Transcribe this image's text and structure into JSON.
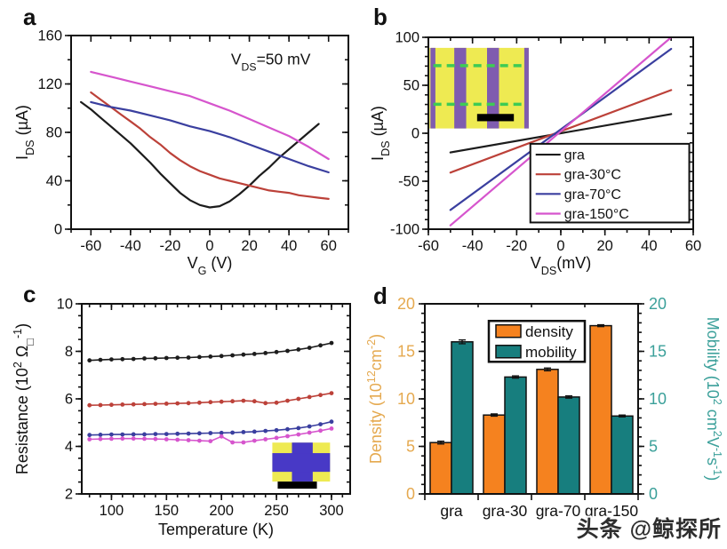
{
  "watermark": "头条 @鲸探所",
  "panels": [
    {
      "label": "a"
    },
    {
      "label": "b"
    },
    {
      "label": "c"
    },
    {
      "label": "d"
    }
  ],
  "colors": {
    "gra": "#1c1c1c",
    "gra30": "#bc4139",
    "gra70": "#3a3f9f",
    "gra150": "#d655cd",
    "density": "#f5821f",
    "mobility": "#177e7e",
    "density_label": "#e5a94f",
    "mobility_label": "#3ba09a",
    "inset_yellow": "#eeea52",
    "inset_purple": "#7f5caf",
    "inset_green": "#3ecb54",
    "inset_blue": "#4839c6",
    "axis": "#111111"
  },
  "chart_data": [
    {
      "type": "line",
      "xlabel": "V_{G} (V)",
      "ylabel": "I_{DS} (µA)",
      "xlim": [
        -70,
        70
      ],
      "ylim": [
        0,
        160
      ],
      "xticks": [
        -60,
        -40,
        -20,
        0,
        20,
        40,
        60
      ],
      "yticks": [
        0,
        40,
        80,
        120,
        160
      ],
      "xminor": 10,
      "yminor": 20,
      "annotation": {
        "text": "V_{DS}=50 mV",
        "fx": 0.72,
        "fy": 0.15
      },
      "series": [
        {
          "name": "gra",
          "color": "gra",
          "x": [
            -65,
            -60,
            -55,
            -50,
            -45,
            -40,
            -35,
            -30,
            -25,
            -20,
            -15,
            -10,
            -5,
            0,
            5,
            10,
            15,
            20,
            25,
            30,
            35,
            40,
            45,
            50,
            55
          ],
          "y": [
            105,
            99,
            92,
            85,
            78,
            71,
            63,
            55,
            46,
            38,
            30,
            24,
            20,
            18,
            19,
            23,
            29,
            36,
            44,
            51,
            59,
            66,
            73,
            80,
            87
          ]
        },
        {
          "name": "gra-30°C",
          "color": "gra30",
          "x": [
            -60,
            -55,
            -50,
            -45,
            -40,
            -35,
            -30,
            -25,
            -20,
            -15,
            -10,
            -5,
            0,
            5,
            10,
            15,
            20,
            25,
            30,
            35,
            40,
            45,
            50,
            55,
            60
          ],
          "y": [
            113,
            107,
            101,
            95,
            89,
            83,
            76,
            70,
            63,
            57,
            52,
            48,
            45,
            42,
            40,
            38,
            36,
            34,
            32,
            31,
            30,
            28,
            27,
            26,
            25
          ]
        },
        {
          "name": "gra-70°C",
          "color": "gra70",
          "x": [
            -60,
            -50,
            -40,
            -30,
            -20,
            -10,
            0,
            10,
            20,
            30,
            40,
            50,
            60
          ],
          "y": [
            105,
            101,
            98,
            94,
            90,
            85,
            81,
            76,
            70,
            64,
            58,
            52,
            47
          ]
        },
        {
          "name": "gra-150°C",
          "color": "gra150",
          "x": [
            -60,
            -50,
            -40,
            -30,
            -20,
            -10,
            0,
            10,
            20,
            30,
            40,
            50,
            60
          ],
          "y": [
            130,
            126,
            122,
            118,
            114,
            110,
            104,
            98,
            91,
            84,
            77,
            68,
            58
          ]
        }
      ]
    },
    {
      "type": "line",
      "xlabel": "V_{DS}(mV)",
      "ylabel": "I_{DS} (µA)",
      "xlim": [
        -60,
        60
      ],
      "ylim": [
        -100,
        100
      ],
      "xticks": [
        -60,
        -40,
        -20,
        0,
        20,
        40,
        60
      ],
      "yticks": [
        -100,
        -50,
        0,
        50,
        100
      ],
      "xminor": 10,
      "yminor": 10,
      "legend": {
        "fx": 0.385,
        "fy": 0.555,
        "fw": 0.6,
        "fh": 0.41
      },
      "inset": {
        "kind": "stripes",
        "fx": 0.004,
        "fy": 0.055,
        "fw": 0.375,
        "fh": 0.42
      },
      "series": [
        {
          "name": "gra",
          "color": "gra",
          "x": [
            -50,
            50
          ],
          "y": [
            -20,
            20
          ]
        },
        {
          "name": "gra-30°C",
          "color": "gra30",
          "x": [
            -50,
            50
          ],
          "y": [
            -41,
            45
          ]
        },
        {
          "name": "gra-70°C",
          "color": "gra70",
          "x": [
            -50,
            50
          ],
          "y": [
            -80,
            88
          ]
        },
        {
          "name": "gra-150°C",
          "color": "gra150",
          "x": [
            -50,
            50
          ],
          "y": [
            -96,
            100
          ]
        }
      ]
    },
    {
      "type": "line",
      "xlabel": "Temperature (K)",
      "ylabel": "Resistance (10^{2} Ω_{□}^{-1})",
      "xlim": [
        73,
        317
      ],
      "ylim": [
        2,
        10
      ],
      "xticks": [
        100,
        150,
        200,
        250,
        300
      ],
      "yticks": [
        2,
        4,
        6,
        8,
        10
      ],
      "xminor": 10,
      "yminor": 0.5,
      "inset": {
        "kind": "cross",
        "fx": 0.71,
        "fy": 0.73,
        "fw": 0.215,
        "fh": 0.205,
        "bar_fx": 0.73,
        "bar_fy": 0.935,
        "bar_fw": 0.146
      },
      "series": [
        {
          "name": "gra",
          "color": "gra",
          "marker": true,
          "x": [
            80,
            90,
            100,
            110,
            120,
            130,
            140,
            150,
            160,
            170,
            180,
            190,
            200,
            210,
            220,
            230,
            240,
            250,
            260,
            270,
            280,
            290,
            300
          ],
          "y": [
            7.62,
            7.64,
            7.66,
            7.67,
            7.68,
            7.7,
            7.71,
            7.72,
            7.73,
            7.74,
            7.76,
            7.78,
            7.8,
            7.83,
            7.86,
            7.89,
            7.93,
            7.97,
            8.02,
            8.08,
            8.15,
            8.25,
            8.35
          ]
        },
        {
          "name": "gra-30°C",
          "color": "gra30",
          "marker": true,
          "x": [
            80,
            90,
            100,
            110,
            120,
            130,
            140,
            150,
            160,
            170,
            180,
            190,
            200,
            210,
            220,
            230,
            240,
            250,
            260,
            270,
            280,
            290,
            300
          ],
          "y": [
            5.73,
            5.74,
            5.75,
            5.76,
            5.77,
            5.78,
            5.79,
            5.8,
            5.81,
            5.82,
            5.84,
            5.86,
            5.88,
            5.9,
            5.92,
            5.9,
            5.82,
            5.84,
            5.92,
            6.0,
            6.08,
            6.16,
            6.24
          ]
        },
        {
          "name": "gra-70°C",
          "color": "gra70",
          "marker": true,
          "x": [
            80,
            90,
            100,
            110,
            120,
            130,
            140,
            150,
            160,
            170,
            180,
            190,
            200,
            210,
            220,
            230,
            240,
            250,
            260,
            270,
            280,
            290,
            300
          ],
          "y": [
            4.48,
            4.49,
            4.5,
            4.5,
            4.51,
            4.51,
            4.52,
            4.52,
            4.53,
            4.54,
            4.55,
            4.56,
            4.57,
            4.58,
            4.6,
            4.62,
            4.65,
            4.68,
            4.72,
            4.77,
            4.84,
            4.93,
            5.04
          ]
        },
        {
          "name": "gra-150°C",
          "color": "gra150",
          "marker": true,
          "x": [
            80,
            90,
            100,
            110,
            120,
            130,
            140,
            150,
            160,
            170,
            180,
            190,
            200,
            210,
            220,
            230,
            240,
            250,
            260,
            270,
            280,
            290,
            300
          ],
          "y": [
            4.3,
            4.31,
            4.32,
            4.33,
            4.33,
            4.32,
            4.31,
            4.3,
            4.28,
            4.26,
            4.24,
            4.22,
            4.42,
            4.17,
            4.17,
            4.24,
            4.3,
            4.36,
            4.43,
            4.5,
            4.58,
            4.66,
            4.75
          ]
        }
      ]
    },
    {
      "type": "bar",
      "categories": [
        "gra",
        "gra-30",
        "gra-70",
        "gra-150"
      ],
      "ylabel_left": "Density (10^{12}cm^{-2})",
      "ylabel_right": "Mobility (10^{2} cm^{2}V^{-1}s^{-1})",
      "ylim": [
        0,
        20
      ],
      "yticks": [
        0,
        5,
        10,
        15,
        20
      ],
      "yminor": 1,
      "legend": {
        "fx": 0.3,
        "fy": 0.09,
        "fw": 0.45,
        "fh": 0.215
      },
      "series": [
        {
          "name": "density",
          "color": "density",
          "values": [
            5.4,
            8.3,
            13.1,
            17.7
          ],
          "err": [
            0.15,
            0.12,
            0.15,
            0.1
          ]
        },
        {
          "name": "mobility",
          "color": "mobility",
          "values": [
            16.0,
            12.3,
            10.2,
            8.2
          ],
          "err": [
            0.2,
            0.12,
            0.12,
            0.1
          ]
        }
      ]
    }
  ]
}
